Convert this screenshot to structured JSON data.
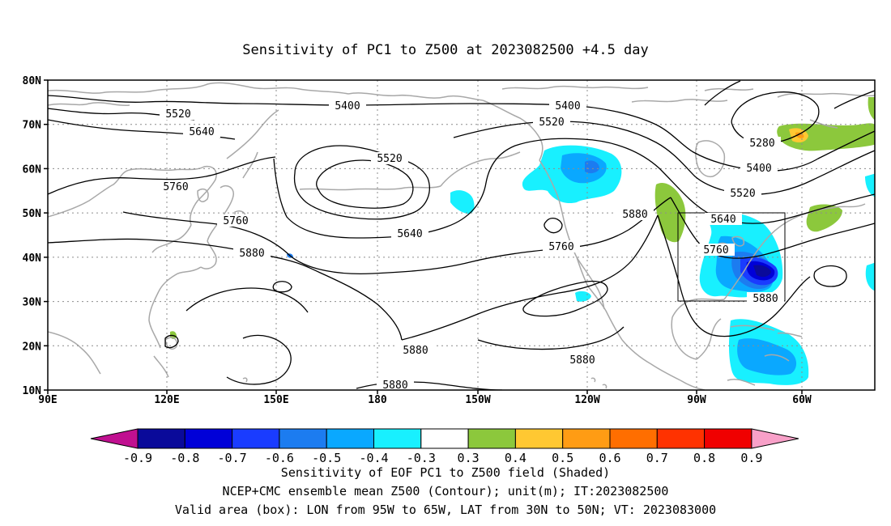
{
  "title": "Sensitivity of PC1 to Z500 at 2023082500 +4.5 day",
  "lat_ticks": [
    "80N",
    "70N",
    "60N",
    "50N",
    "40N",
    "30N",
    "20N",
    "10N"
  ],
  "lon_ticks": [
    "90E",
    "120E",
    "150E",
    "180",
    "150W",
    "120W",
    "90W",
    "60W"
  ],
  "contour_levels": {
    "l5280": "5280",
    "l5400": "5400",
    "l5520": "5520",
    "l5640": "5640",
    "l5760": "5760",
    "l5880": "5880"
  },
  "colorbar": {
    "labels": [
      "-0.9",
      "-0.8",
      "-0.7",
      "-0.6",
      "-0.5",
      "-0.4",
      "-0.3",
      "0.3",
      "0.4",
      "0.5",
      "0.6",
      "0.7",
      "0.8",
      "0.9"
    ],
    "colors": [
      "#c01090",
      "#0a0a9a",
      "#0000d8",
      "#1a3cff",
      "#1c7cf0",
      "#0aa8ff",
      "#18f0ff",
      "#ffffff",
      "#8cc83c",
      "#ffc832",
      "#ff9c14",
      "#ff6e00",
      "#ff3200",
      "#f00000",
      "#f8a0c8"
    ]
  },
  "captions": {
    "line1": "Sensitivity of EOF PC1 to Z500 field (Shaded)",
    "line2": "NCEP+CMC ensemble mean Z500 (Contour); unit(m); IT:2023082500",
    "line3": "Valid area (box): LON from 95W to 65W, LAT from 30N to 50N; VT: 2023083000"
  },
  "valid_box": {
    "lon_min": "95W",
    "lon_max": "65W",
    "lat_min": "30N",
    "lat_max": "50N"
  },
  "colors": {
    "contour": "#000000",
    "coastline": "#a8a8a8",
    "grid": "#8c8c8c"
  }
}
